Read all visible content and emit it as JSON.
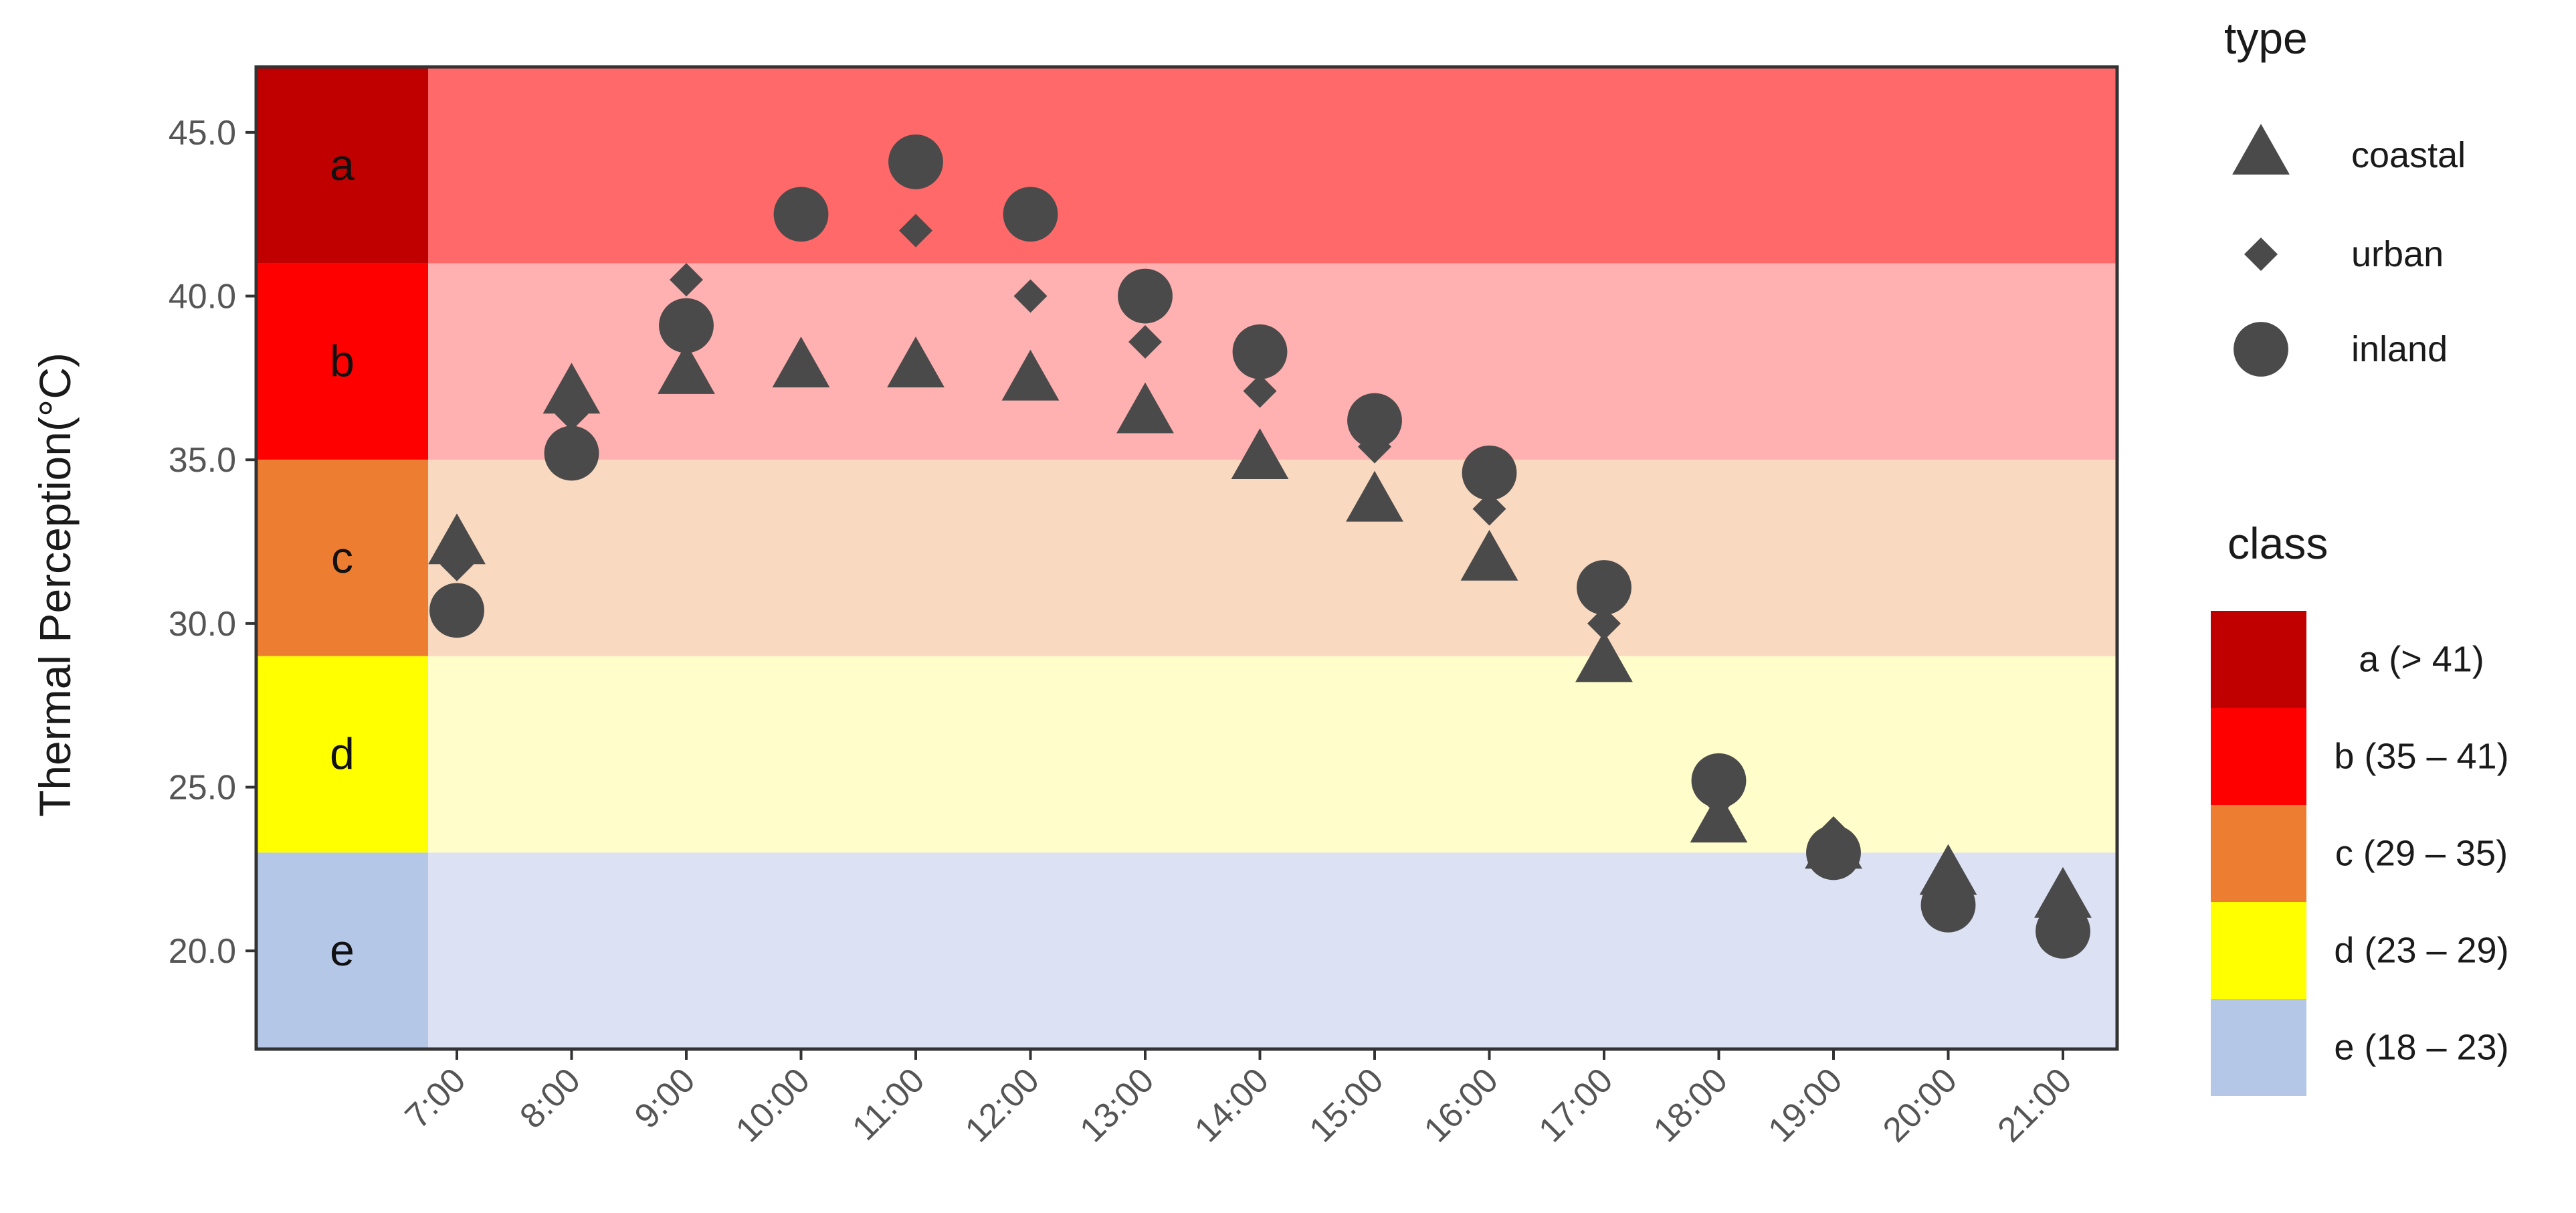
{
  "chart_data": {
    "type": "scatter",
    "ylabel": "Thermal Perception(°C)",
    "ylim": [
      17,
      47
    ],
    "yticks": [
      "20.0",
      "25.0",
      "30.0",
      "35.0",
      "40.0",
      "45.0"
    ],
    "categories": [
      "7:00",
      "8:00",
      "9:00",
      "10:00",
      "11:00",
      "12:00",
      "13:00",
      "14:00",
      "15:00",
      "16:00",
      "17:00",
      "18:00",
      "19:00",
      "20:00",
      "21:00"
    ],
    "series": [
      {
        "name": "coastal",
        "marker": "triangle",
        "values": [
          32.4,
          37.0,
          37.6,
          37.8,
          37.8,
          37.4,
          36.4,
          35.0,
          33.7,
          31.9,
          28.8,
          23.9,
          23.1,
          22.3,
          21.6
        ]
      },
      {
        "name": "urban",
        "marker": "diamond",
        "values": [
          31.8,
          36.4,
          40.5,
          42.8,
          42.0,
          40.0,
          38.6,
          37.1,
          35.4,
          33.5,
          30.0,
          24.6,
          23.6,
          21.6,
          20.6
        ]
      },
      {
        "name": "inland",
        "marker": "circle",
        "values": [
          30.4,
          35.2,
          39.1,
          42.5,
          44.1,
          42.5,
          40.0,
          38.3,
          36.2,
          34.6,
          31.1,
          25.2,
          23.0,
          21.4,
          20.6
        ]
      }
    ],
    "classes": [
      {
        "letter": "a",
        "legend": "a (> 41)",
        "min": 41,
        "max": 47,
        "color": "#c00000",
        "band_color": "#ff6969"
      },
      {
        "letter": "b",
        "legend": "b (35 – 41)",
        "min": 35,
        "max": 41,
        "color": "#ff0000",
        "band_color": "#ffb0b0"
      },
      {
        "letter": "c",
        "legend": "c (29 – 35)",
        "min": 29,
        "max": 35,
        "color": "#ed7d31",
        "band_color": "#f9d9c0"
      },
      {
        "letter": "d",
        "legend": "d (23 – 29)",
        "min": 23,
        "max": 29,
        "color": "#ffff00",
        "band_color": "#fffdca"
      },
      {
        "letter": "e",
        "legend": "e (18 – 23)",
        "min": 17,
        "max": 23,
        "color": "#b4c7e7",
        "band_color": "#dce1f4"
      }
    ],
    "legend": {
      "type_title": "type",
      "class_title": "class",
      "placement": "right"
    },
    "marker_color": "#4a4a4a",
    "grid": false
  }
}
